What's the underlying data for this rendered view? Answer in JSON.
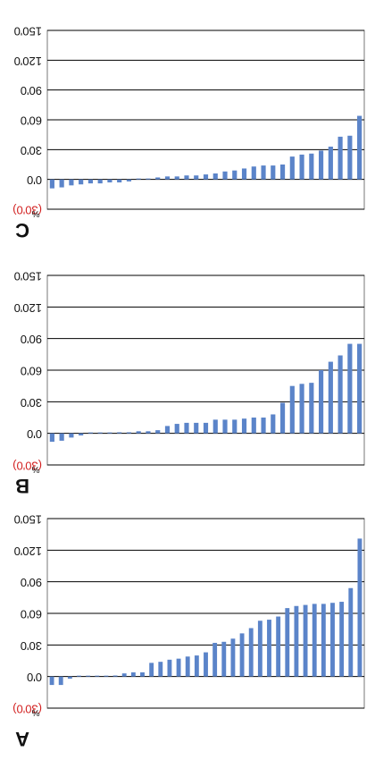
{
  "figure": {
    "rotation_deg": 180
  },
  "style": {
    "bar_color": "#5b84c9",
    "gridline_color": "#000000",
    "negative_tick_color": "#d21f1f",
    "frame_color": "#777777"
  },
  "chart_data": [
    {
      "type": "bar",
      "panel_label": "A",
      "unit_label": "%",
      "ylabel": "",
      "xlabel": "",
      "ylim": [
        -30,
        150
      ],
      "y_ticks": [
        -30,
        0,
        30,
        60,
        90,
        120,
        150
      ],
      "y_tick_labels": [
        "(30'0)",
        "0'0",
        "30'0",
        "60'0",
        "90'0",
        "120'0",
        "150'0"
      ],
      "grid": true,
      "values": [
        -8,
        -8,
        -2,
        0,
        0,
        0,
        0,
        1,
        3,
        4,
        4,
        13,
        14,
        16,
        17,
        19,
        20,
        23,
        32,
        33,
        36,
        41,
        46,
        53,
        54,
        57,
        65,
        67,
        68,
        69,
        69,
        70,
        71,
        84,
        131
      ]
    },
    {
      "type": "bar",
      "panel_label": "B",
      "unit_label": "%",
      "ylabel": "",
      "xlabel": "",
      "ylim": [
        -30,
        150
      ],
      "y_ticks": [
        -30,
        0,
        30,
        60,
        90,
        120,
        150
      ],
      "y_tick_labels": [
        "(30'0)",
        "0'0",
        "30'0",
        "60'0",
        "90'0",
        "120'0",
        "150'0"
      ],
      "grid": true,
      "values": [
        -8,
        -7,
        -4,
        -2,
        0,
        0,
        0,
        1,
        1,
        2,
        2,
        3,
        7,
        9,
        10,
        10,
        10,
        13,
        13,
        13,
        14,
        15,
        15,
        18,
        29,
        45,
        47,
        48,
        60,
        68,
        74,
        85,
        85
      ]
    },
    {
      "type": "bar",
      "panel_label": "C",
      "unit_label": "%",
      "ylabel": "",
      "xlabel": "",
      "ylim": [
        -30,
        150
      ],
      "y_ticks": [
        -30,
        0,
        30,
        60,
        90,
        120,
        150
      ],
      "y_tick_labels": [
        "(30'0)",
        "0'0",
        "30'0",
        "60'0",
        "90'0",
        "120'0",
        "150'0"
      ],
      "grid": true,
      "values": [
        -9,
        -8,
        -6,
        -5,
        -4,
        -4,
        -3,
        -3,
        -2,
        0,
        0,
        2,
        3,
        3,
        4,
        4,
        5,
        6,
        8,
        9,
        11,
        13,
        14,
        14,
        15,
        23,
        25,
        26,
        29,
        33,
        43,
        44,
        64
      ]
    }
  ]
}
